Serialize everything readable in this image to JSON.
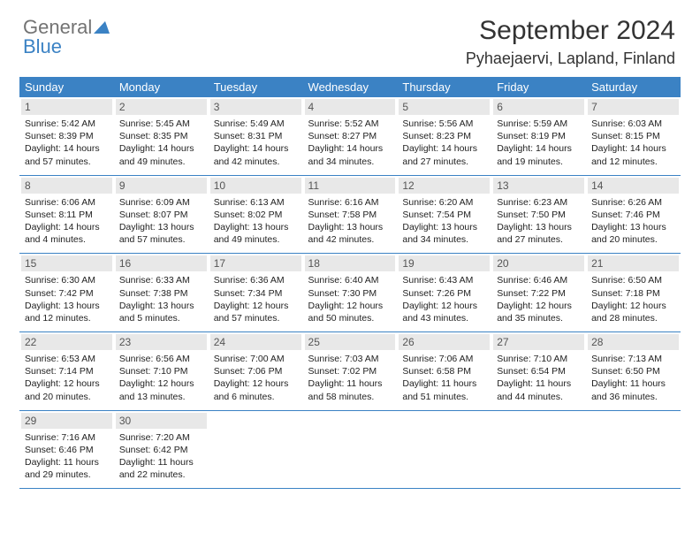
{
  "brand": {
    "part1": "General",
    "part2": "Blue"
  },
  "title": "September 2024",
  "location": "Pyhaejaervi, Lapland, Finland",
  "colors": {
    "header_bg": "#3b82c4",
    "header_fg": "#ffffff",
    "daynum_bg": "#e8e8e8",
    "rule": "#3b82c4",
    "logo_gray": "#737373",
    "logo_blue": "#3b82c4"
  },
  "weekdays": [
    "Sunday",
    "Monday",
    "Tuesday",
    "Wednesday",
    "Thursday",
    "Friday",
    "Saturday"
  ],
  "weeks": [
    [
      {
        "n": "1",
        "sr": "Sunrise: 5:42 AM",
        "ss": "Sunset: 8:39 PM",
        "d1": "Daylight: 14 hours",
        "d2": "and 57 minutes."
      },
      {
        "n": "2",
        "sr": "Sunrise: 5:45 AM",
        "ss": "Sunset: 8:35 PM",
        "d1": "Daylight: 14 hours",
        "d2": "and 49 minutes."
      },
      {
        "n": "3",
        "sr": "Sunrise: 5:49 AM",
        "ss": "Sunset: 8:31 PM",
        "d1": "Daylight: 14 hours",
        "d2": "and 42 minutes."
      },
      {
        "n": "4",
        "sr": "Sunrise: 5:52 AM",
        "ss": "Sunset: 8:27 PM",
        "d1": "Daylight: 14 hours",
        "d2": "and 34 minutes."
      },
      {
        "n": "5",
        "sr": "Sunrise: 5:56 AM",
        "ss": "Sunset: 8:23 PM",
        "d1": "Daylight: 14 hours",
        "d2": "and 27 minutes."
      },
      {
        "n": "6",
        "sr": "Sunrise: 5:59 AM",
        "ss": "Sunset: 8:19 PM",
        "d1": "Daylight: 14 hours",
        "d2": "and 19 minutes."
      },
      {
        "n": "7",
        "sr": "Sunrise: 6:03 AM",
        "ss": "Sunset: 8:15 PM",
        "d1": "Daylight: 14 hours",
        "d2": "and 12 minutes."
      }
    ],
    [
      {
        "n": "8",
        "sr": "Sunrise: 6:06 AM",
        "ss": "Sunset: 8:11 PM",
        "d1": "Daylight: 14 hours",
        "d2": "and 4 minutes."
      },
      {
        "n": "9",
        "sr": "Sunrise: 6:09 AM",
        "ss": "Sunset: 8:07 PM",
        "d1": "Daylight: 13 hours",
        "d2": "and 57 minutes."
      },
      {
        "n": "10",
        "sr": "Sunrise: 6:13 AM",
        "ss": "Sunset: 8:02 PM",
        "d1": "Daylight: 13 hours",
        "d2": "and 49 minutes."
      },
      {
        "n": "11",
        "sr": "Sunrise: 6:16 AM",
        "ss": "Sunset: 7:58 PM",
        "d1": "Daylight: 13 hours",
        "d2": "and 42 minutes."
      },
      {
        "n": "12",
        "sr": "Sunrise: 6:20 AM",
        "ss": "Sunset: 7:54 PM",
        "d1": "Daylight: 13 hours",
        "d2": "and 34 minutes."
      },
      {
        "n": "13",
        "sr": "Sunrise: 6:23 AM",
        "ss": "Sunset: 7:50 PM",
        "d1": "Daylight: 13 hours",
        "d2": "and 27 minutes."
      },
      {
        "n": "14",
        "sr": "Sunrise: 6:26 AM",
        "ss": "Sunset: 7:46 PM",
        "d1": "Daylight: 13 hours",
        "d2": "and 20 minutes."
      }
    ],
    [
      {
        "n": "15",
        "sr": "Sunrise: 6:30 AM",
        "ss": "Sunset: 7:42 PM",
        "d1": "Daylight: 13 hours",
        "d2": "and 12 minutes."
      },
      {
        "n": "16",
        "sr": "Sunrise: 6:33 AM",
        "ss": "Sunset: 7:38 PM",
        "d1": "Daylight: 13 hours",
        "d2": "and 5 minutes."
      },
      {
        "n": "17",
        "sr": "Sunrise: 6:36 AM",
        "ss": "Sunset: 7:34 PM",
        "d1": "Daylight: 12 hours",
        "d2": "and 57 minutes."
      },
      {
        "n": "18",
        "sr": "Sunrise: 6:40 AM",
        "ss": "Sunset: 7:30 PM",
        "d1": "Daylight: 12 hours",
        "d2": "and 50 minutes."
      },
      {
        "n": "19",
        "sr": "Sunrise: 6:43 AM",
        "ss": "Sunset: 7:26 PM",
        "d1": "Daylight: 12 hours",
        "d2": "and 43 minutes."
      },
      {
        "n": "20",
        "sr": "Sunrise: 6:46 AM",
        "ss": "Sunset: 7:22 PM",
        "d1": "Daylight: 12 hours",
        "d2": "and 35 minutes."
      },
      {
        "n": "21",
        "sr": "Sunrise: 6:50 AM",
        "ss": "Sunset: 7:18 PM",
        "d1": "Daylight: 12 hours",
        "d2": "and 28 minutes."
      }
    ],
    [
      {
        "n": "22",
        "sr": "Sunrise: 6:53 AM",
        "ss": "Sunset: 7:14 PM",
        "d1": "Daylight: 12 hours",
        "d2": "and 20 minutes."
      },
      {
        "n": "23",
        "sr": "Sunrise: 6:56 AM",
        "ss": "Sunset: 7:10 PM",
        "d1": "Daylight: 12 hours",
        "d2": "and 13 minutes."
      },
      {
        "n": "24",
        "sr": "Sunrise: 7:00 AM",
        "ss": "Sunset: 7:06 PM",
        "d1": "Daylight: 12 hours",
        "d2": "and 6 minutes."
      },
      {
        "n": "25",
        "sr": "Sunrise: 7:03 AM",
        "ss": "Sunset: 7:02 PM",
        "d1": "Daylight: 11 hours",
        "d2": "and 58 minutes."
      },
      {
        "n": "26",
        "sr": "Sunrise: 7:06 AM",
        "ss": "Sunset: 6:58 PM",
        "d1": "Daylight: 11 hours",
        "d2": "and 51 minutes."
      },
      {
        "n": "27",
        "sr": "Sunrise: 7:10 AM",
        "ss": "Sunset: 6:54 PM",
        "d1": "Daylight: 11 hours",
        "d2": "and 44 minutes."
      },
      {
        "n": "28",
        "sr": "Sunrise: 7:13 AM",
        "ss": "Sunset: 6:50 PM",
        "d1": "Daylight: 11 hours",
        "d2": "and 36 minutes."
      }
    ],
    [
      {
        "n": "29",
        "sr": "Sunrise: 7:16 AM",
        "ss": "Sunset: 6:46 PM",
        "d1": "Daylight: 11 hours",
        "d2": "and 29 minutes."
      },
      {
        "n": "30",
        "sr": "Sunrise: 7:20 AM",
        "ss": "Sunset: 6:42 PM",
        "d1": "Daylight: 11 hours",
        "d2": "and 22 minutes."
      },
      null,
      null,
      null,
      null,
      null
    ]
  ]
}
